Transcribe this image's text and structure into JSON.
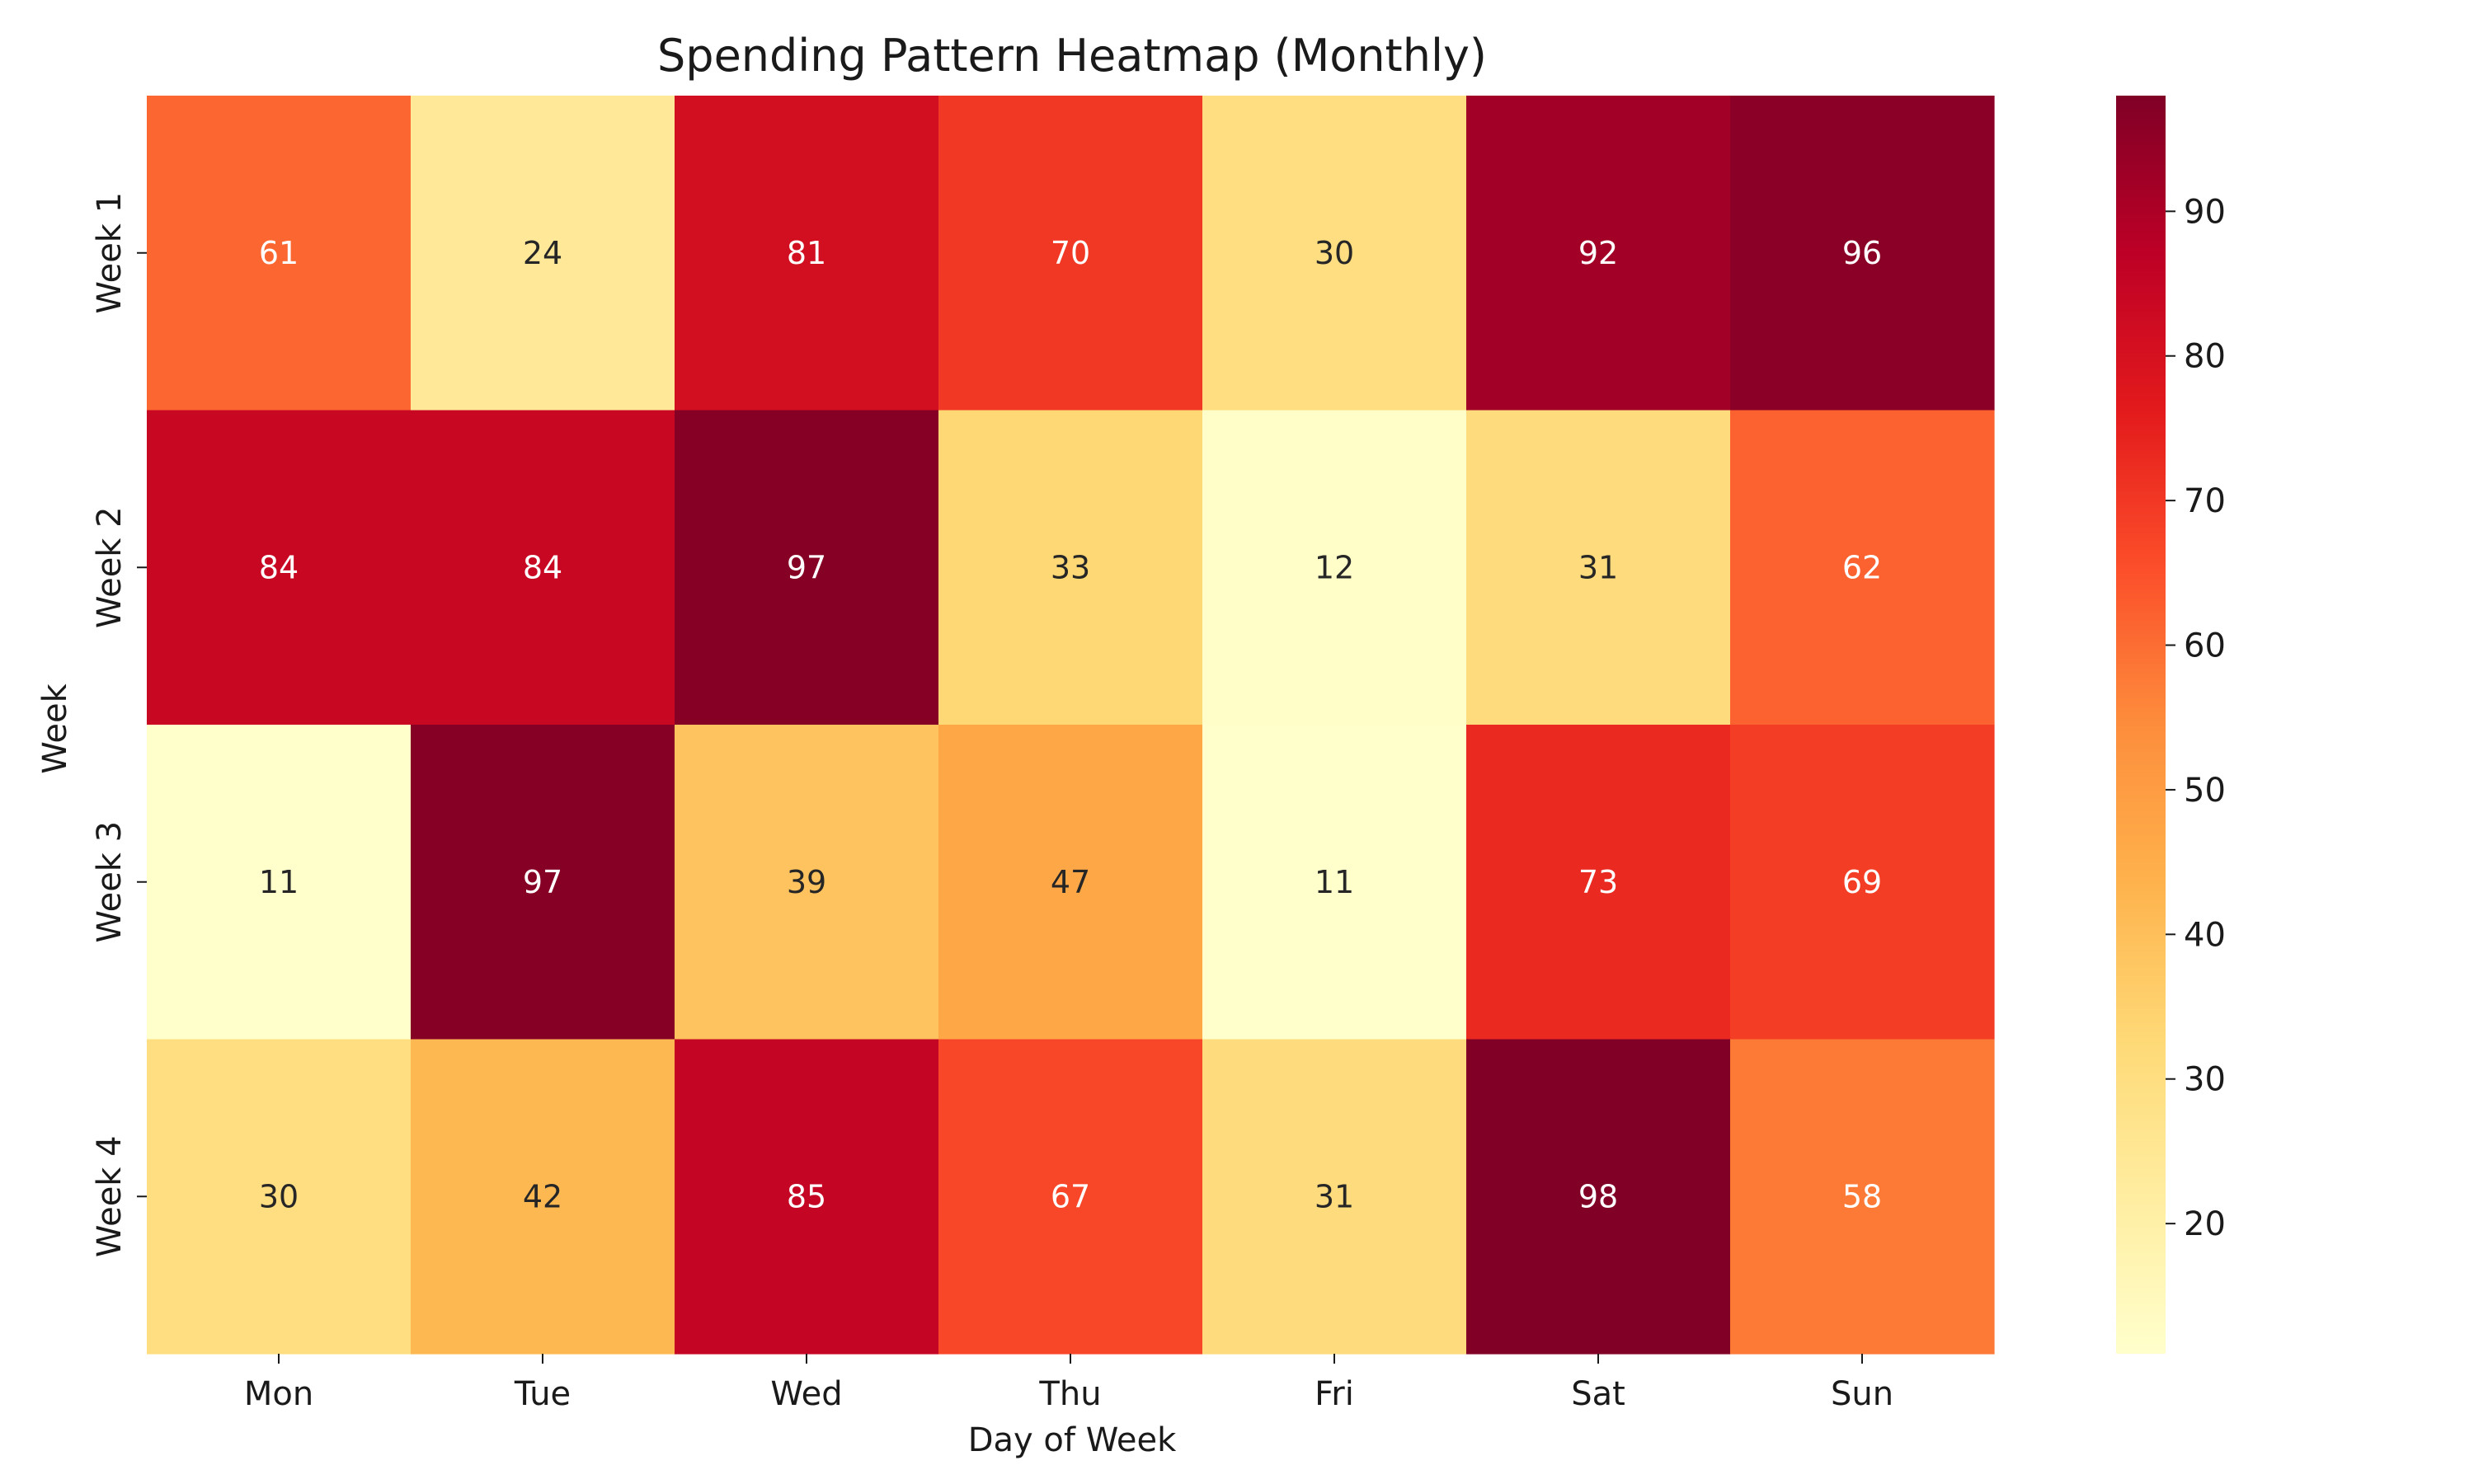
{
  "chart_data": {
    "type": "heatmap",
    "title": "Spending Pattern Heatmap (Monthly)",
    "xlabel": "Day of Week",
    "ylabel": "Week",
    "x_categories": [
      "Mon",
      "Tue",
      "Wed",
      "Thu",
      "Fri",
      "Sat",
      "Sun"
    ],
    "y_categories": [
      "Week 1",
      "Week 2",
      "Week 3",
      "Week 4"
    ],
    "values": [
      [
        61,
        24,
        81,
        70,
        30,
        92,
        96
      ],
      [
        84,
        84,
        97,
        33,
        12,
        31,
        62
      ],
      [
        11,
        97,
        39,
        47,
        11,
        73,
        69
      ],
      [
        30,
        42,
        85,
        67,
        31,
        98,
        58
      ]
    ],
    "annotated": true,
    "colormap": "YlOrRd",
    "color_range": [
      11,
      98
    ],
    "colorbar_ticks": [
      20,
      30,
      40,
      50,
      60,
      70,
      80,
      90
    ],
    "colors": {
      "stops": [
        "#ffffcc",
        "#ffeda0",
        "#fed976",
        "#feb24c",
        "#fd8d3c",
        "#fc4e2a",
        "#e31a1c",
        "#bd0026",
        "#800026"
      ],
      "dark_text": "#262626",
      "light_text": "#ffffff"
    }
  }
}
